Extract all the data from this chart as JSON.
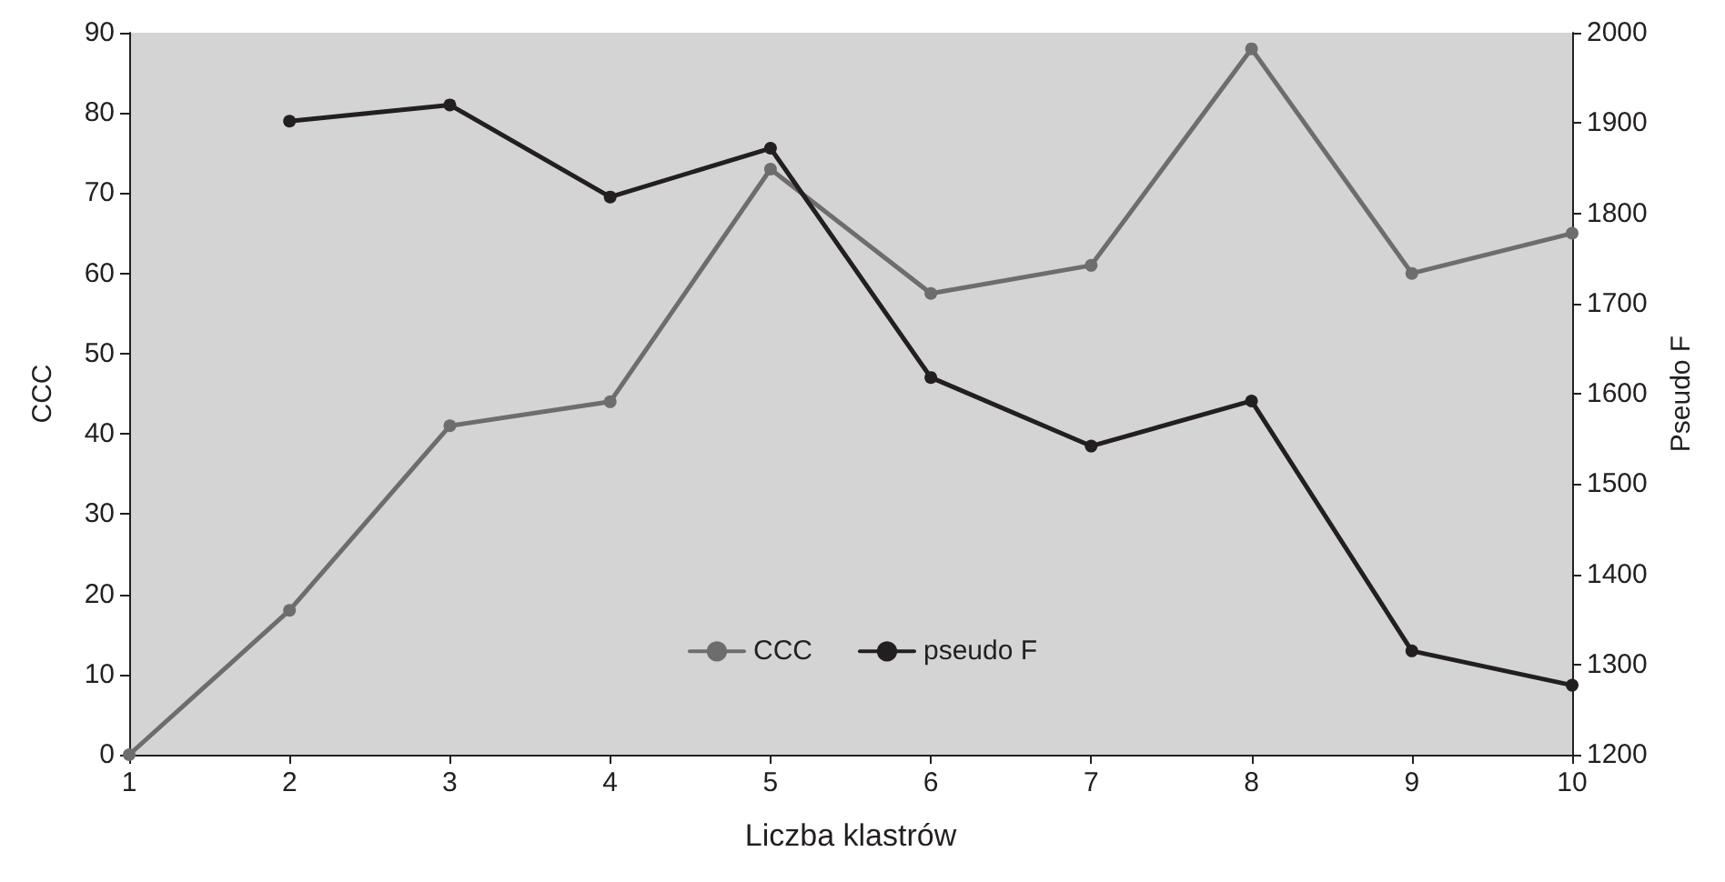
{
  "chart_data": {
    "type": "line",
    "xlabel": "Liczba klastrów",
    "ylabel": "CCC",
    "y2label": "Pseudo F",
    "x": [
      1,
      2,
      3,
      4,
      5,
      6,
      7,
      8,
      9,
      10
    ],
    "series": [
      {
        "name": "CCC",
        "color": "#6d6d6d",
        "values": [
          0,
          18,
          41,
          44,
          73,
          57.5,
          61,
          88,
          60,
          65
        ]
      },
      {
        "name": "pseudo F",
        "color": "#231f20",
        "axis": "y2",
        "values": [
          null,
          1902,
          1920,
          1818,
          1872,
          1618,
          1542,
          1592,
          1315,
          1277
        ]
      }
    ],
    "xlim": [
      1,
      10
    ],
    "xticks": [
      1,
      2,
      3,
      4,
      5,
      6,
      7,
      8,
      9,
      10
    ],
    "ylim": [
      0,
      90
    ],
    "yticks": [
      0,
      10,
      20,
      30,
      40,
      50,
      60,
      70,
      80,
      90
    ],
    "y2lim": [
      1200,
      2000
    ],
    "y2ticks": [
      1200,
      1300,
      1400,
      1500,
      1600,
      1700,
      1800,
      1900,
      2000
    ],
    "grid": false,
    "legend": "bottom",
    "marker": "circle",
    "line_style": "solid"
  }
}
